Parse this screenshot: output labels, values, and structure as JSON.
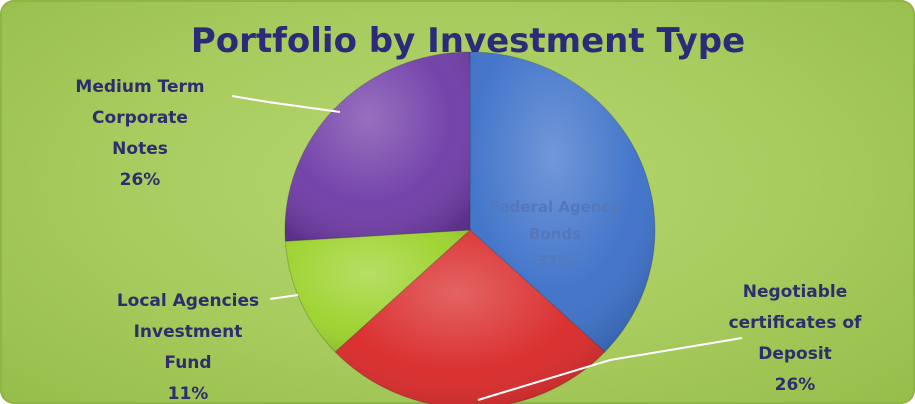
{
  "chart_data": {
    "type": "pie",
    "title": "Portfolio by Investment Type",
    "slices": [
      {
        "label_lines": [
          "Federal Agency",
          "Bonds"
        ],
        "value": 37,
        "value_text": "37%",
        "color": "#3a6fc8"
      },
      {
        "label_lines": [
          "Negotiable",
          "certificates of",
          "Deposit"
        ],
        "value": 26,
        "value_text": "26%",
        "color": "#d92626"
      },
      {
        "label_lines": [
          "Local Agencies",
          "Investment",
          "Fund"
        ],
        "value": 11,
        "value_text": "11%",
        "color": "#9bd22a"
      },
      {
        "label_lines": [
          "Medium Term",
          "Corporate",
          "Notes"
        ],
        "value": 26,
        "value_text": "26%",
        "color": "#6e3aa6"
      }
    ],
    "start_angle_deg": 0,
    "direction": "clockwise",
    "legend": "none"
  }
}
